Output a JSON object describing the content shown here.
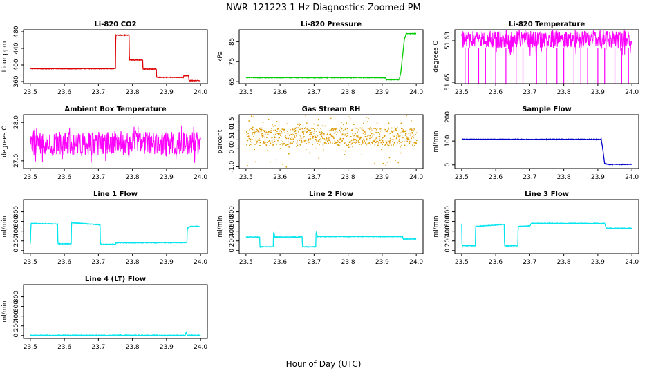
{
  "figure": {
    "title": "NWR_121223  1 Hz Diagnostics Zoomed PM",
    "xlabel": "Hour of Day (UTC)"
  },
  "chart_data": [
    {
      "type": "line",
      "title": "Li-820 CO2",
      "ylabel": "Licor ppm",
      "xlim": [
        23.5,
        24.0
      ],
      "ylim": [
        355,
        485
      ],
      "xticks": [
        "23.5",
        "23.6",
        "23.7",
        "23.8",
        "23.9",
        "24.0"
      ],
      "yticks": [
        "360",
        "400",
        "440",
        "480"
      ],
      "color": "#dd0000",
      "series": [
        {
          "x": [
            23.5,
            23.75,
            23.751,
            23.79,
            23.791,
            23.83,
            23.831,
            23.87,
            23.871,
            23.95,
            23.951,
            23.965,
            23.966,
            24.0
          ],
          "values": [
            391,
            391,
            472,
            472,
            412,
            412,
            390,
            390,
            370,
            370,
            374,
            374,
            362,
            362
          ]
        }
      ]
    },
    {
      "type": "line",
      "title": "Li-820 Pressure",
      "ylabel": "kPa",
      "xlim": [
        23.5,
        24.0
      ],
      "ylim": [
        64,
        91
      ],
      "xticks": [
        "23.5",
        "23.6",
        "23.7",
        "23.8",
        "23.9",
        "24.0"
      ],
      "yticks": [
        "65",
        "75",
        "85"
      ],
      "color": "#00cc00",
      "series": [
        {
          "x": [
            23.5,
            23.91,
            23.911,
            23.95,
            23.955,
            23.96,
            23.965,
            23.97,
            23.975,
            24.0
          ],
          "values": [
            67,
            67,
            66,
            66,
            70,
            78,
            86,
            89,
            89,
            89
          ]
        }
      ]
    },
    {
      "type": "line",
      "title": "Li-820 Temperature",
      "ylabel": "degrees C",
      "xlim": [
        23.5,
        24.0
      ],
      "ylim": [
        51.649,
        51.688
      ],
      "xticks": [
        "23.5",
        "23.6",
        "23.7",
        "23.8",
        "23.9",
        "24.0"
      ],
      "yticks": [
        "51.65",
        "51.68"
      ],
      "color": "#ff00ff",
      "series": [
        {
          "x": [
            23.5,
            24.0
          ],
          "values": [
            51.68,
            51.68
          ],
          "low": 51.675,
          "high": 51.687,
          "dips": [
            23.51,
            23.52,
            23.55,
            23.57,
            23.6,
            23.63,
            23.66,
            23.68,
            23.72,
            23.75,
            23.78,
            23.8,
            23.83,
            23.85,
            23.87,
            23.9,
            23.92,
            23.95,
            23.97,
            23.99
          ]
        }
      ]
    },
    {
      "type": "line",
      "title": "Ambient Box Temperature",
      "ylabel": "degrees C",
      "xlim": [
        23.5,
        24.0
      ],
      "ylim": [
        26.8,
        28.2
      ],
      "xticks": [
        "23.5",
        "23.6",
        "23.7",
        "23.8",
        "23.9",
        "24.0"
      ],
      "yticks": [
        "27.0",
        "28.0"
      ],
      "color": "#ff00ff",
      "series": [
        {
          "x": [
            23.5,
            24.0
          ],
          "values": [
            27.45,
            27.45
          ],
          "low": 27.15,
          "high": 27.75
        }
      ]
    },
    {
      "type": "scatter",
      "title": "Gas Stream RH",
      "ylabel": "percent",
      "xlim": [
        23.5,
        24.0
      ],
      "ylim": [
        -1.1,
        1.9
      ],
      "xticks": [
        "23.5",
        "23.6",
        "23.7",
        "23.8",
        "23.9",
        "24.0"
      ],
      "yticks": [
        "-1.0",
        "0.0",
        "0.5",
        "1.0",
        "1.5"
      ],
      "color": "#dd9900",
      "series": [
        {
          "x": [
            23.5,
            24.0
          ],
          "values": [
            0.7,
            0.7
          ],
          "low": 0.2,
          "high": 1.2
        }
      ]
    },
    {
      "type": "line",
      "title": "Sample Flow",
      "ylabel": "ml/min",
      "xlim": [
        23.5,
        24.0
      ],
      "ylim": [
        -15,
        210
      ],
      "xticks": [
        "23.5",
        "23.6",
        "23.7",
        "23.8",
        "23.9",
        "24.0"
      ],
      "yticks": [
        "0",
        "100",
        "200"
      ],
      "color": "#0000cc",
      "series": [
        {
          "x": [
            23.5,
            23.91,
            23.915,
            23.92,
            23.93,
            24.0
          ],
          "values": [
            107,
            107,
            60,
            5,
            2,
            2
          ]
        }
      ]
    },
    {
      "type": "line",
      "title": "Line 1 Flow",
      "ylabel": "ml/min",
      "xlim": [
        23.5,
        24.0
      ],
      "ylim": [
        -60,
        1050
      ],
      "xticks": [
        "23.5",
        "23.6",
        "23.7",
        "23.8",
        "23.9",
        "24.0"
      ],
      "yticks": [
        "0",
        "200",
        "400",
        "600",
        "800"
      ],
      "color": "#00e5ee",
      "series": [
        {
          "x": [
            23.5,
            23.502,
            23.505,
            23.58,
            23.581,
            23.62,
            23.621,
            23.705,
            23.706,
            23.75,
            23.751,
            23.96,
            23.961,
            23.97,
            24.0
          ],
          "values": [
            140,
            560,
            560,
            545,
            140,
            140,
            575,
            530,
            130,
            130,
            160,
            165,
            460,
            500,
            500
          ]
        }
      ]
    },
    {
      "type": "line",
      "title": "Line 2 Flow",
      "ylabel": "ml/min",
      "xlim": [
        23.5,
        24.0
      ],
      "ylim": [
        -60,
        1050
      ],
      "xticks": [
        "23.5",
        "23.6",
        "23.7",
        "23.8",
        "23.9",
        "24.0"
      ],
      "yticks": [
        "0",
        "200",
        "400",
        "600",
        "800"
      ],
      "color": "#00e5ee",
      "series": [
        {
          "x": [
            23.5,
            23.54,
            23.541,
            23.58,
            23.581,
            23.585,
            23.665,
            23.666,
            23.705,
            23.706,
            23.71,
            23.96,
            23.961,
            24.0
          ],
          "values": [
            280,
            280,
            80,
            80,
            400,
            280,
            280,
            80,
            80,
            400,
            290,
            290,
            240,
            240
          ]
        }
      ]
    },
    {
      "type": "line",
      "title": "Line 3 Flow",
      "ylabel": "ml/min",
      "xlim": [
        23.5,
        24.0
      ],
      "ylim": [
        -60,
        1050
      ],
      "xticks": [
        "23.5",
        "23.6",
        "23.7",
        "23.8",
        "23.9",
        "24.0"
      ],
      "yticks": [
        "0",
        "200",
        "400",
        "600",
        "800"
      ],
      "color": "#00e5ee",
      "series": [
        {
          "x": [
            23.5,
            23.501,
            23.502,
            23.54,
            23.541,
            23.545,
            23.625,
            23.626,
            23.665,
            23.666,
            23.67,
            23.7,
            23.705,
            23.92,
            23.925,
            24.0
          ],
          "values": [
            550,
            100,
            100,
            100,
            500,
            500,
            540,
            100,
            100,
            500,
            500,
            510,
            560,
            560,
            460,
            460
          ]
        }
      ]
    },
    {
      "type": "line",
      "title": "Line 4 (LT) Flow",
      "ylabel": "ml/min",
      "xlim": [
        23.5,
        24.0
      ],
      "ylim": [
        -60,
        1050
      ],
      "xticks": [
        "23.5",
        "23.6",
        "23.7",
        "23.8",
        "23.9",
        "24.0"
      ],
      "yticks": [
        "0",
        "200",
        "400",
        "600",
        "800"
      ],
      "color": "#00e5ee",
      "series": [
        {
          "x": [
            23.5,
            23.955,
            23.958,
            23.961,
            23.964,
            24.0
          ],
          "values": [
            5,
            5,
            80,
            5,
            5,
            5
          ]
        }
      ]
    }
  ]
}
